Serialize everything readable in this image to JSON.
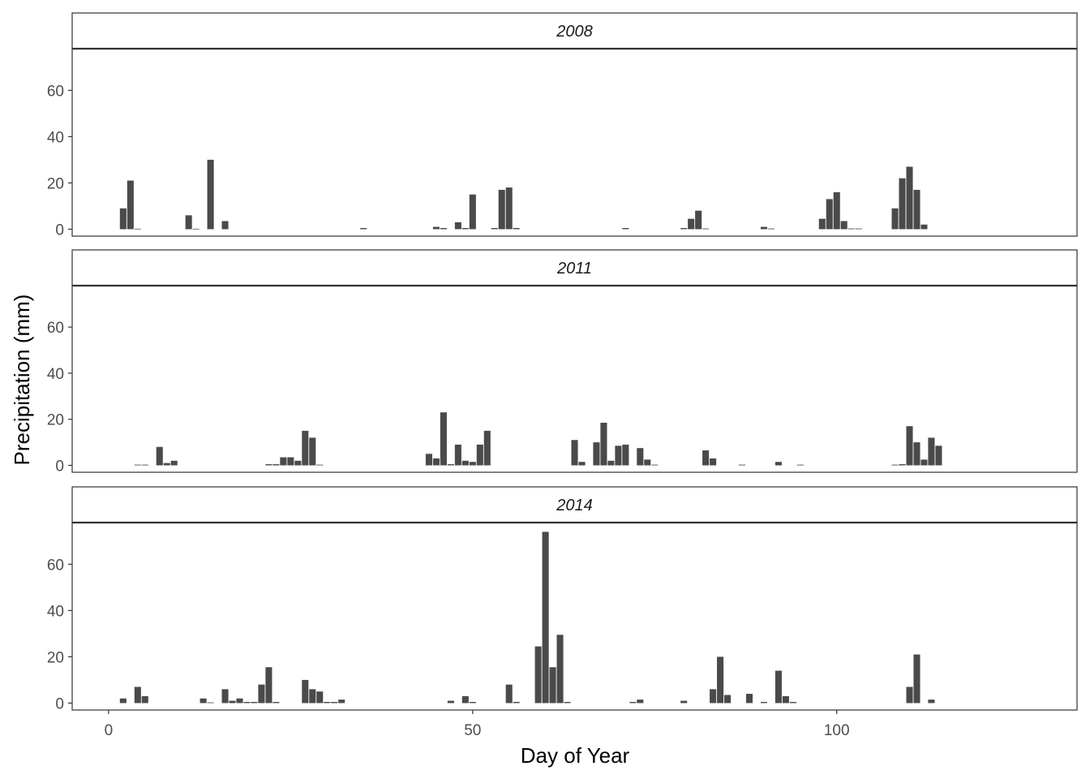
{
  "chart_data": {
    "type": "bar",
    "xlabel": "Day of Year",
    "ylabel": "Precipitation (mm)",
    "xlim": [
      -5,
      133
    ],
    "ylim": [
      -3,
      78
    ],
    "x_ticks": [
      0,
      50,
      100
    ],
    "y_ticks": [
      0,
      20,
      40,
      60
    ],
    "bar_color": "#4a4a4a",
    "panels": [
      {
        "label": "2008",
        "points": [
          [
            2,
            9
          ],
          [
            3,
            21
          ],
          [
            4,
            0.2
          ],
          [
            11,
            6
          ],
          [
            12,
            0.2
          ],
          [
            14,
            30
          ],
          [
            16,
            3.5
          ],
          [
            35,
            0.5
          ],
          [
            45,
            1
          ],
          [
            46,
            0.5
          ],
          [
            48,
            3
          ],
          [
            49,
            0.5
          ],
          [
            50,
            15
          ],
          [
            53,
            0.5
          ],
          [
            54,
            17
          ],
          [
            55,
            18
          ],
          [
            56,
            0.5
          ],
          [
            71,
            0.5
          ],
          [
            79,
            0.5
          ],
          [
            80,
            4.5
          ],
          [
            81,
            8
          ],
          [
            82,
            0.3
          ],
          [
            90,
            1
          ],
          [
            91,
            0.3
          ],
          [
            98,
            4.5
          ],
          [
            99,
            13
          ],
          [
            100,
            16
          ],
          [
            101,
            3.5
          ],
          [
            102,
            0.3
          ],
          [
            103,
            0.3
          ],
          [
            108,
            9
          ],
          [
            109,
            22
          ],
          [
            110,
            27
          ],
          [
            111,
            17
          ],
          [
            112,
            2
          ]
        ]
      },
      {
        "label": "2011",
        "points": [
          [
            4,
            0.3
          ],
          [
            5,
            0.3
          ],
          [
            7,
            8
          ],
          [
            8,
            1
          ],
          [
            9,
            2
          ],
          [
            22,
            0.5
          ],
          [
            23,
            0.5
          ],
          [
            24,
            3.5
          ],
          [
            25,
            3.5
          ],
          [
            26,
            2
          ],
          [
            27,
            15
          ],
          [
            28,
            12
          ],
          [
            29,
            0.3
          ],
          [
            44,
            5
          ],
          [
            45,
            3
          ],
          [
            46,
            23
          ],
          [
            47,
            0.5
          ],
          [
            48,
            9
          ],
          [
            49,
            2
          ],
          [
            50,
            1.5
          ],
          [
            51,
            9
          ],
          [
            52,
            15
          ],
          [
            64,
            11
          ],
          [
            65,
            1.5
          ],
          [
            67,
            10
          ],
          [
            68,
            18.5
          ],
          [
            69,
            2
          ],
          [
            70,
            8.5
          ],
          [
            71,
            9
          ],
          [
            73,
            7.5
          ],
          [
            74,
            2.5
          ],
          [
            75,
            0.3
          ],
          [
            82,
            6.5
          ],
          [
            83,
            3
          ],
          [
            87,
            0.3
          ],
          [
            92,
            1.5
          ],
          [
            95,
            0.3
          ],
          [
            108,
            0.3
          ],
          [
            109,
            0.5
          ],
          [
            110,
            17
          ],
          [
            111,
            10
          ],
          [
            112,
            2.5
          ],
          [
            113,
            12
          ],
          [
            114,
            8.5
          ]
        ]
      },
      {
        "label": "2014",
        "points": [
          [
            2,
            2
          ],
          [
            4,
            7
          ],
          [
            5,
            3
          ],
          [
            13,
            2
          ],
          [
            14,
            0.3
          ],
          [
            16,
            6
          ],
          [
            17,
            1
          ],
          [
            18,
            2
          ],
          [
            19,
            0.5
          ],
          [
            20,
            0.5
          ],
          [
            21,
            8
          ],
          [
            22,
            15.5
          ],
          [
            23,
            0.5
          ],
          [
            27,
            10
          ],
          [
            28,
            6
          ],
          [
            29,
            5
          ],
          [
            30,
            0.5
          ],
          [
            31,
            0.5
          ],
          [
            32,
            1.5
          ],
          [
            47,
            1
          ],
          [
            49,
            3
          ],
          [
            50,
            0.5
          ],
          [
            55,
            8
          ],
          [
            56,
            0.5
          ],
          [
            59,
            24.5
          ],
          [
            60,
            74
          ],
          [
            61,
            15.5
          ],
          [
            62,
            29.5
          ],
          [
            63,
            0.5
          ],
          [
            72,
            0.5
          ],
          [
            73,
            1.5
          ],
          [
            79,
            1
          ],
          [
            83,
            6
          ],
          [
            84,
            20
          ],
          [
            85,
            3.5
          ],
          [
            88,
            4
          ],
          [
            90,
            0.5
          ],
          [
            92,
            14
          ],
          [
            93,
            3
          ],
          [
            94,
            0.5
          ],
          [
            110,
            7
          ],
          [
            111,
            21
          ],
          [
            113,
            1.5
          ]
        ]
      }
    ]
  }
}
